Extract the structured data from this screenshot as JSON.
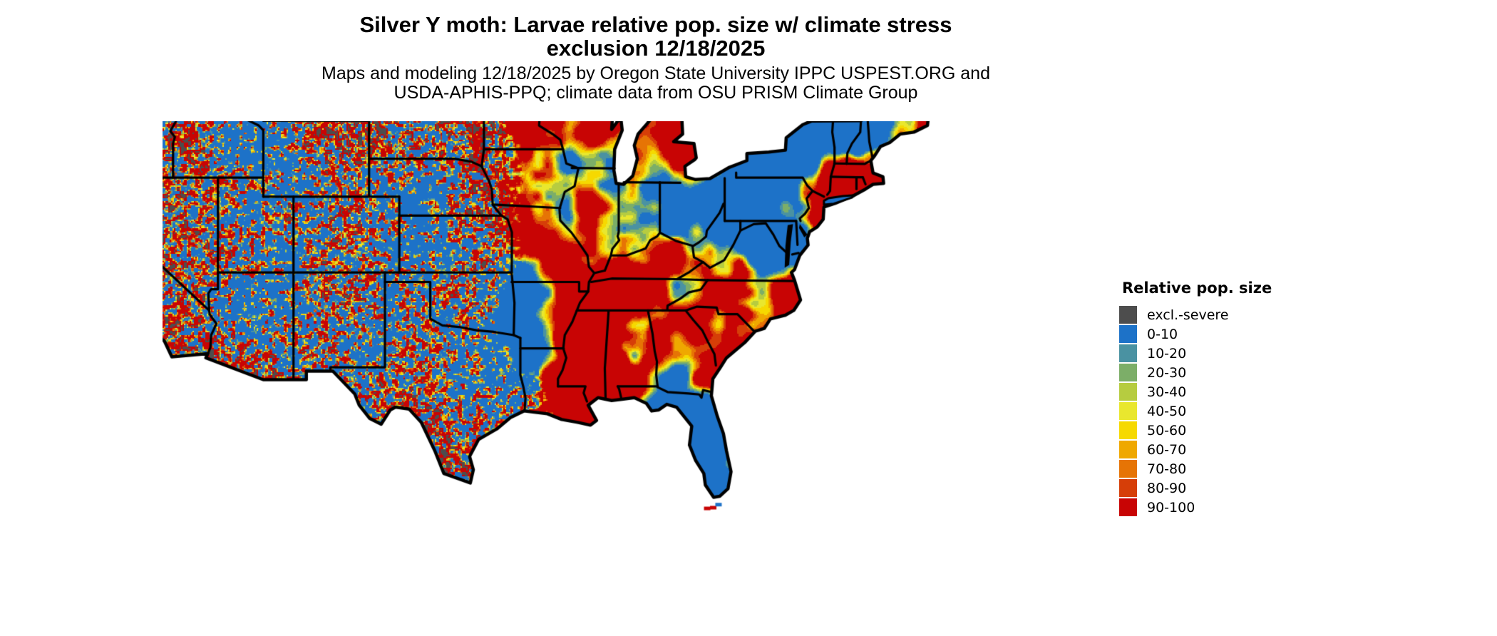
{
  "title": {
    "line1": "Silver Y moth: Larvae relative pop. size w/ climate stress",
    "line2": "exclusion 12/18/2025"
  },
  "subtitle": {
    "line1": "Maps and modeling 12/18/2025 by Oregon State University IPPC USPEST.ORG and",
    "line2": "USDA-APHIS-PPQ; climate data from OSU PRISM Climate Group"
  },
  "legend": {
    "title": "Relative pop. size",
    "entries": [
      {
        "label": "excl.-severe",
        "color": "#4d4d4d"
      },
      {
        "label": "0-10",
        "color": "#1d72c8"
      },
      {
        "label": "10-20",
        "color": "#4a92a2"
      },
      {
        "label": "20-30",
        "color": "#7cae68"
      },
      {
        "label": "30-40",
        "color": "#b6cc40"
      },
      {
        "label": "40-50",
        "color": "#e9e72e"
      },
      {
        "label": "50-60",
        "color": "#f6d900"
      },
      {
        "label": "60-70",
        "color": "#efa800"
      },
      {
        "label": "70-80",
        "color": "#e67405"
      },
      {
        "label": "80-90",
        "color": "#d63e08"
      },
      {
        "label": "90-100",
        "color": "#c80404"
      }
    ]
  },
  "map": {
    "region": "Continental United States",
    "kind": "classified raster of relative population size with state borders",
    "border_color": "#000000",
    "background_color": "#ffffff"
  }
}
